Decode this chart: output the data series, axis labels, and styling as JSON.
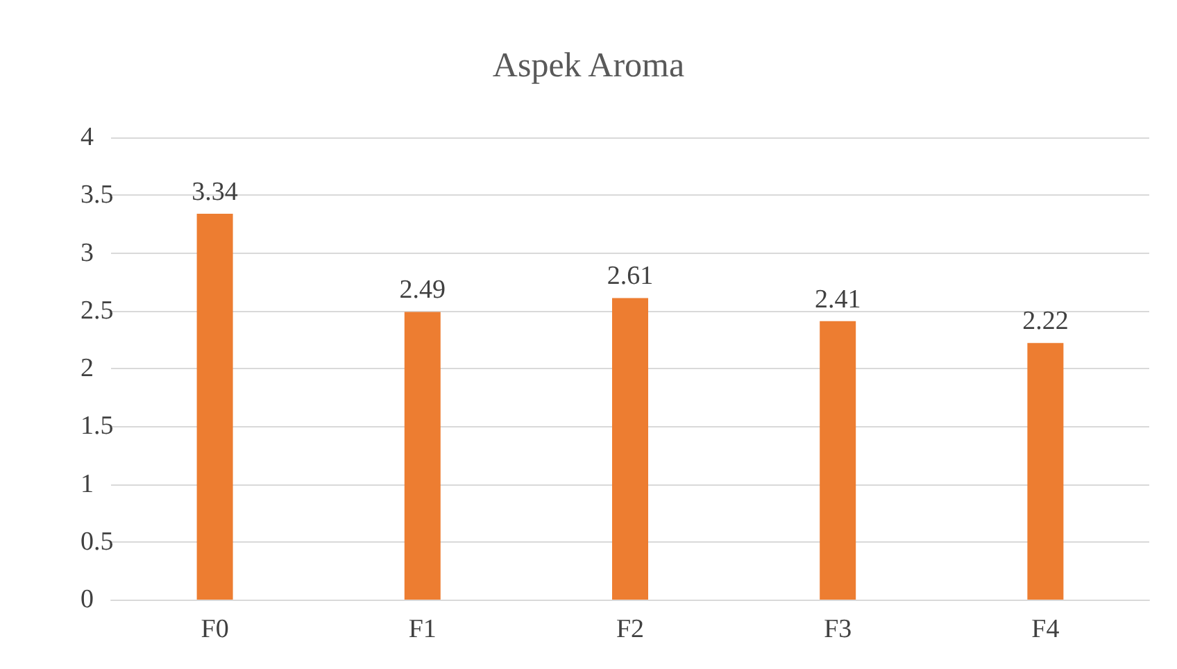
{
  "chart_data": {
    "type": "bar",
    "title": "Aspek Aroma",
    "categories": [
      "F0",
      "F1",
      "F2",
      "F3",
      "F4"
    ],
    "values": [
      3.34,
      2.49,
      2.61,
      2.41,
      2.22
    ],
    "color": "#ed7d31",
    "ylim": [
      0,
      4
    ],
    "yticks": [
      0,
      0.5,
      1,
      1.5,
      2,
      2.5,
      3,
      3.5,
      4
    ],
    "grid": "y",
    "data_labels": true
  }
}
